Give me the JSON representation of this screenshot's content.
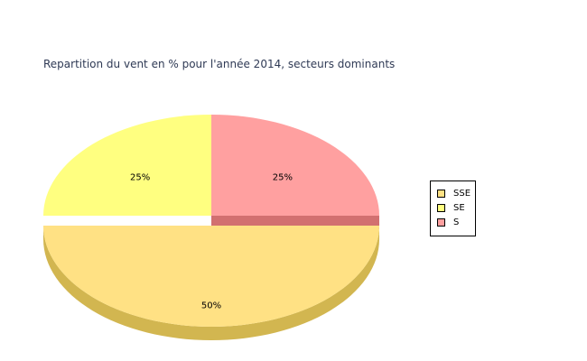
{
  "chart_data": {
    "type": "pie",
    "title": "Repartition du vent en % pour l'année 2014, secteurs dominants",
    "categories": [
      "SSE",
      "SE",
      "S"
    ],
    "values": [
      50,
      25,
      25
    ],
    "labels": [
      "50%",
      "25%",
      "25%"
    ],
    "colors": [
      "#ffe184",
      "#ffff80",
      "#ffa0a0"
    ],
    "side_colors": [
      "#d2b650",
      "#d2d254",
      "#d27070"
    ],
    "exploded": "SSE",
    "legend_position": "right"
  }
}
